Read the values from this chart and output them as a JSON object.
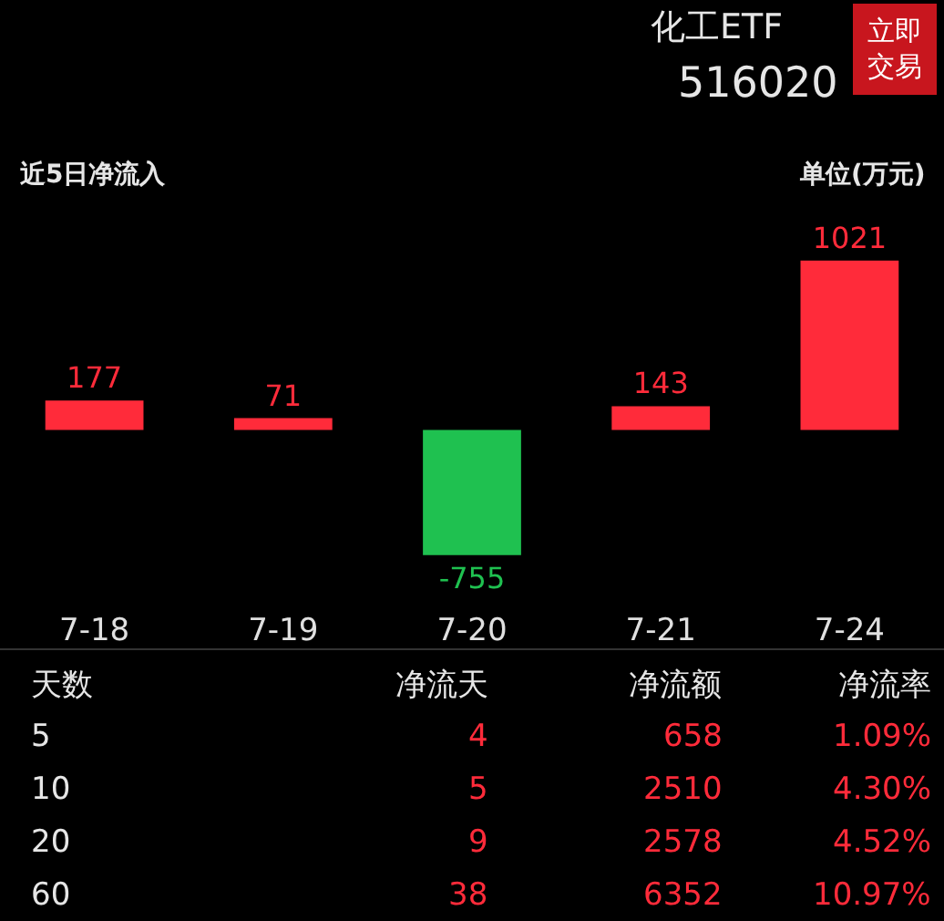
{
  "chart_data": [
    {
      "type": "other",
      "annotations": [
        "化工ETF",
        "516020",
        "立即交易"
      ],
      "colors": [
        "#e6e6e6",
        "#e6e6e6",
        "#ffffff"
      ]
    },
    {
      "type": "bar",
      "title": "近5日净流入",
      "ylabel": "单位(万元)",
      "categories": [
        "7-18",
        "7-19",
        "7-20",
        "7-21",
        "7-24"
      ],
      "values": [
        177,
        71,
        -755,
        143,
        1021
      ],
      "colors": [
        "#ff2b3a",
        "#ff2b3a",
        "#1fc150",
        "#ff2b3a",
        "#ff2b3a"
      ],
      "data_labels": true,
      "grid": false,
      "legend": false
    },
    {
      "type": "other",
      "annotations": [
        "天数",
        "净流天",
        "净流额",
        "净流率",
        "5",
        "4",
        "658",
        "1.09%",
        "10",
        "5",
        "2510",
        "4.30%",
        "20",
        "9",
        "2578",
        "4.52%",
        "60",
        "38",
        "6352",
        "10.97%"
      ],
      "colors": [
        "#e6e6e6",
        "#ff2b3a",
        "#ff2b3a",
        "#ff2b3a"
      ]
    }
  ]
}
